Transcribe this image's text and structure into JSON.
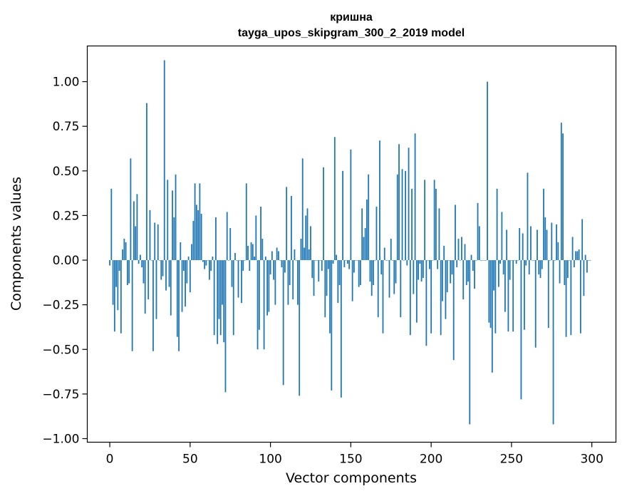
{
  "chart_data": {
    "type": "bar",
    "title": "кришна",
    "subtitle": "tayga_upos_skipgram_300_2_2019 model",
    "xlabel": "Vector components",
    "ylabel": "Components values",
    "xlim": [
      -14,
      315
    ],
    "ylim": [
      -1.02,
      1.2
    ],
    "xticks": [
      0,
      50,
      100,
      150,
      200,
      250,
      300
    ],
    "yticks": [
      -1.0,
      -0.75,
      -0.5,
      -0.25,
      0.0,
      0.25,
      0.5,
      0.75,
      1.0
    ],
    "ytick_labels": [
      "−1.00",
      "−0.75",
      "−0.50",
      "−0.25",
      "0.00",
      "0.25",
      "0.50",
      "0.75",
      "1.00"
    ],
    "xtick_labels": [
      "0",
      "50",
      "100",
      "150",
      "200",
      "250",
      "300"
    ],
    "bar_color": "#1f77b4",
    "grid": false,
    "x": "0..299",
    "values": [
      -0.03,
      0.4,
      -0.25,
      -0.4,
      -0.15,
      -0.28,
      -0.06,
      -0.41,
      0.06,
      0.12,
      0.1,
      -0.14,
      -0.13,
      0.57,
      -0.51,
      0.33,
      0.19,
      0.37,
      -0.02,
      0.03,
      -0.04,
      -0.13,
      -0.3,
      0.88,
      -0.22,
      0.28,
      0.0,
      -0.51,
      0.21,
      -0.33,
      0.2,
      0.0,
      -0.11,
      -0.09,
      1.12,
      -0.17,
      0.45,
      -0.15,
      -0.31,
      0.39,
      0.24,
      0.48,
      -0.43,
      -0.51,
      0.1,
      -0.29,
      -0.06,
      -0.26,
      -0.13,
      0.02,
      -0.18,
      0.09,
      0.22,
      0.43,
      0.31,
      0.28,
      0.43,
      0.26,
      -0.01,
      -0.05,
      -0.03,
      0.0,
      -0.11,
      -0.06,
      0.02,
      -0.42,
      0.24,
      -0.47,
      -0.33,
      -0.42,
      -0.25,
      -0.46,
      -0.74,
      0.27,
      0.0,
      0.18,
      -0.15,
      -0.42,
      0.04,
      0.0,
      -0.21,
      0.0,
      -0.24,
      -0.06,
      0.0,
      0.43,
      0.08,
      -0.06,
      0.1,
      0.09,
      0.02,
      0.25,
      -0.5,
      -0.39,
      0.3,
      0.12,
      -0.5,
      0.02,
      -0.31,
      -0.29,
      -0.08,
      0.05,
      -0.11,
      -0.25,
      0.07,
      0.05,
      0.0,
      -0.04,
      -0.7,
      -0.07,
      0.41,
      -0.25,
      -0.14,
      0.36,
      -0.22,
      0.06,
      0.0,
      -0.25,
      -0.76,
      0.12,
      0.57,
      0.07,
      0.25,
      0.29,
      0.06,
      0.19,
      -0.1,
      -0.2,
      0.0,
      0.0,
      -0.12,
      0.0,
      -0.06,
      0.52,
      -0.32,
      -0.2,
      -0.05,
      -0.41,
      -0.73,
      -0.02,
      0.69,
      0.03,
      -0.24,
      -0.14,
      -0.77,
      0.5,
      -0.04,
      0.0,
      -0.02,
      -0.05,
      0.62,
      -0.23,
      -0.07,
      0.0,
      0.0,
      -0.15,
      -0.14,
      0.29,
      0.13,
      0.18,
      0.34,
      0.48,
      -0.12,
      -0.2,
      -0.14,
      0.0,
      0.3,
      -0.32,
      0.67,
      -0.08,
      -0.41,
      0.07,
      0.0,
      0.0,
      -0.21,
      0.12,
      0.0,
      -0.19,
      -0.13,
      0.48,
      0.65,
      -0.32,
      0.51,
      0.0,
      0.5,
      -0.03,
      0.63,
      -0.42,
      0.4,
      -0.19,
      0.71,
      -0.35,
      -0.11,
      -0.02,
      -0.12,
      -0.1,
      0.45,
      -0.48,
      0.0,
      -0.05,
      -0.41,
      0.0,
      0.45,
      0.4,
      -0.05,
      0.29,
      -0.42,
      -0.23,
      0.08,
      -0.33,
      -0.18,
      0.0,
      -0.13,
      -0.08,
      -0.56,
      0.31,
      -0.04,
      0.12,
      0.0,
      0.13,
      -0.22,
      0.09,
      -0.14,
      -0.12,
      -0.92,
      0.03,
      -0.06,
      -0.16,
      0.0,
      0.32,
      0.19,
      0.0,
      0.0,
      0.0,
      0.0,
      1.0,
      -0.35,
      -0.38,
      -0.63,
      -0.17,
      -0.41,
      0.4,
      -0.15,
      -0.02,
      0.27,
      -0.08,
      -0.29,
      0.17,
      -0.4,
      -0.11,
      0.0,
      -0.4,
      0.0,
      -0.02,
      0.0,
      0.18,
      -0.78,
      0.15,
      -0.39,
      -0.03,
      0.49,
      -0.08,
      0.19,
      0.0,
      0.0,
      -0.49,
      0.17,
      -0.08,
      -0.1,
      -0.05,
      0.4,
      0.24,
      0.17,
      -0.38,
      0.0,
      0.21,
      -0.92,
      0.0,
      0.2,
      0.1,
      -0.13,
      0.77,
      0.71,
      -0.14,
      -0.43,
      -0.1,
      0.0,
      -0.42,
      0.13,
      -0.04,
      0.05,
      0.05,
      0.06,
      -0.41,
      0.23,
      -0.2,
      0.03,
      -0.07,
      0.0,
      0.0
    ]
  }
}
